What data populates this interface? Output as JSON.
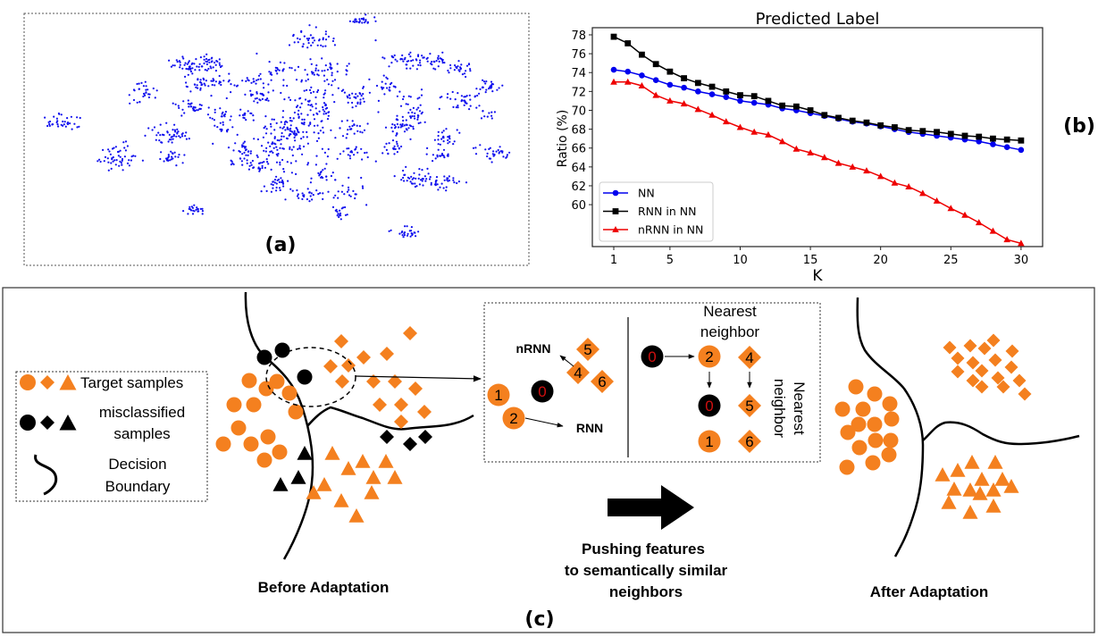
{
  "panel_a": {
    "label": "(a)",
    "dot_color": "#1010ee"
  },
  "panel_b": {
    "label": "(b)"
  },
  "chart_data": {
    "type": "line",
    "title": "Predicted Label",
    "xlabel": "K",
    "ylabel": "Ratio (%)",
    "x": [
      1,
      2,
      3,
      4,
      5,
      6,
      7,
      8,
      9,
      10,
      11,
      12,
      13,
      14,
      15,
      16,
      17,
      18,
      19,
      20,
      21,
      22,
      23,
      24,
      25,
      26,
      27,
      28,
      29,
      30
    ],
    "xticks": [
      1,
      5,
      10,
      15,
      20,
      25,
      30
    ],
    "yticks": [
      60,
      62,
      64,
      66,
      68,
      70,
      72,
      74,
      76,
      78
    ],
    "xlim": [
      -0.5,
      31.5
    ],
    "ylim": [
      55.6,
      78.8
    ],
    "grid": false,
    "legend_position": "bottom-left",
    "series": [
      {
        "name": "NN",
        "color": "#0000ee",
        "marker": "circle",
        "values": [
          74.3,
          74.1,
          73.7,
          73.2,
          72.7,
          72.4,
          72.0,
          71.7,
          71.4,
          71.0,
          70.8,
          70.6,
          70.2,
          70.0,
          69.7,
          69.4,
          69.1,
          68.8,
          68.6,
          68.3,
          68.0,
          67.7,
          67.5,
          67.3,
          67.1,
          66.9,
          66.7,
          66.4,
          66.1,
          65.8
        ]
      },
      {
        "name": "RNN in NN",
        "color": "#000000",
        "marker": "square",
        "values": [
          77.8,
          77.1,
          75.9,
          74.9,
          74.1,
          73.4,
          72.9,
          72.5,
          72.0,
          71.6,
          71.5,
          71.0,
          70.5,
          70.4,
          70.0,
          69.5,
          69.2,
          68.9,
          68.7,
          68.4,
          68.2,
          67.9,
          67.8,
          67.7,
          67.5,
          67.3,
          67.2,
          67.0,
          66.9,
          66.8
        ]
      },
      {
        "name": "nRNN in NN",
        "color": "#ee0000",
        "marker": "triangle",
        "values": [
          73.0,
          73.0,
          72.6,
          71.6,
          71.0,
          70.7,
          70.1,
          69.5,
          68.8,
          68.2,
          67.7,
          67.4,
          66.7,
          65.9,
          65.5,
          65.0,
          64.4,
          64.0,
          63.6,
          63.0,
          62.3,
          61.9,
          61.2,
          60.4,
          59.6,
          58.9,
          58.1,
          57.2,
          56.3,
          55.9
        ]
      }
    ]
  },
  "panel_c": {
    "label": "(c)",
    "orange": "#f4801f",
    "legend": {
      "target": "Target samples",
      "misclassified_1": "misclassified",
      "misclassified_2": "samples",
      "boundary_1": "Decision",
      "boundary_2": "Boundary"
    },
    "before_label": "Before Adaptation",
    "after_label": "After Adaptation",
    "push_1": "Pushing features",
    "push_2": "to semantically similar",
    "push_3": "neighbors",
    "inset": {
      "nrnn": "nRNN",
      "rnn": "RNN",
      "nn_top_1": "Nearest",
      "nn_top_2": "neighbor",
      "nn_side_1": "Nearest",
      "nn_side_2": "neighbor",
      "n0": "0",
      "n1": "1",
      "n2": "2",
      "n4": "4",
      "n5": "5",
      "n6": "6"
    }
  }
}
